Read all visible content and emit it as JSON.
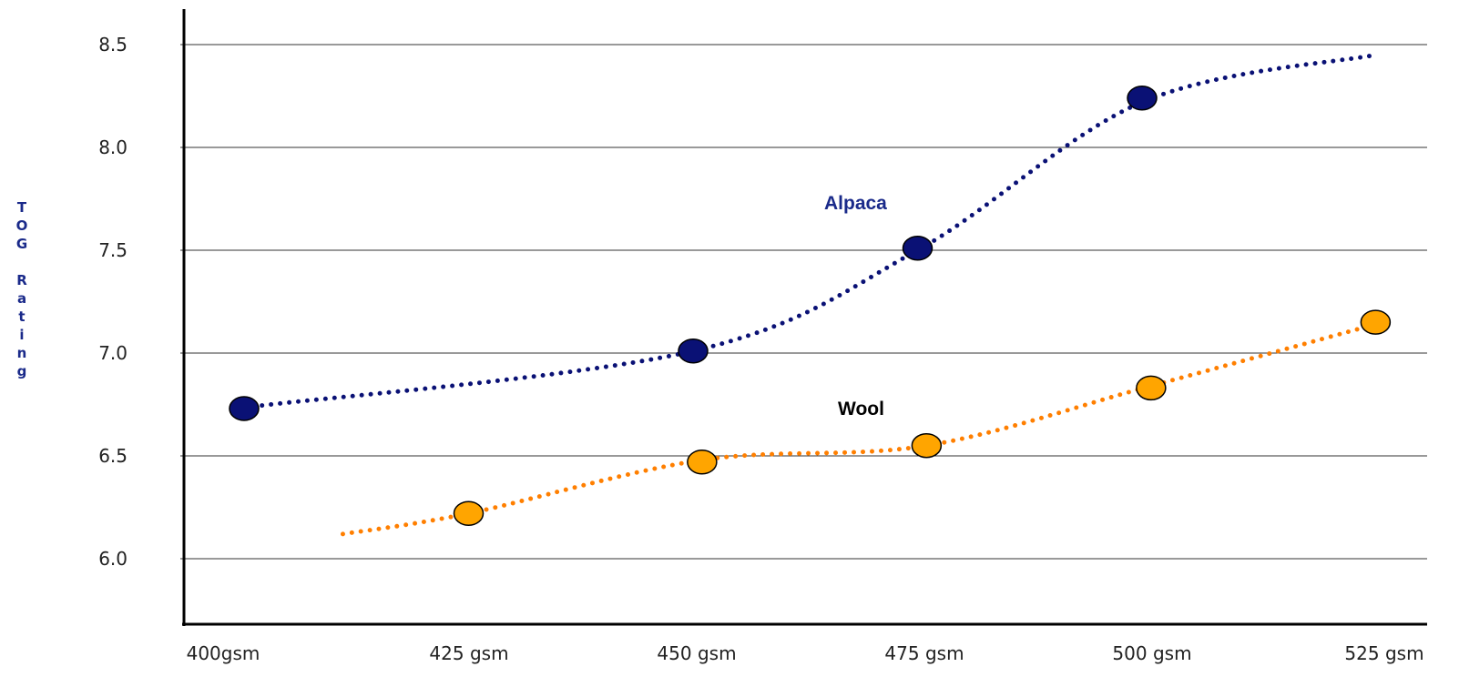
{
  "chart_data": {
    "type": "line",
    "title": "",
    "ylabel": "TOG Rating",
    "xlabel": "",
    "categories": [
      "400gsm",
      "425 gsm",
      "450 gsm",
      "475 gsm",
      "500 gsm",
      "525 gsm"
    ],
    "yticks": [
      "6.0",
      "6.5",
      "7.0",
      "7.5",
      "8.0",
      "8.5"
    ],
    "ylim": [
      5.7,
      8.65
    ],
    "grid": true,
    "series": [
      {
        "name": "Alpaca",
        "color": "#0a1175",
        "line_style": "dotted",
        "points": [
          {
            "x": 400,
            "y": 6.73
          },
          {
            "x": 450,
            "y": 7.01
          },
          {
            "x": 475,
            "y": 7.51
          },
          {
            "x": 500,
            "y": 8.24
          }
        ],
        "trend": [
          {
            "x": 401,
            "y": 6.74
          },
          {
            "x": 450,
            "y": 7.01
          },
          {
            "x": 475,
            "y": 7.5
          },
          {
            "x": 500,
            "y": 8.22
          },
          {
            "x": 526,
            "y": 8.45
          }
        ]
      },
      {
        "name": "Wool",
        "color": "#ffa500",
        "line_color": "#ff7f00",
        "line_style": "dotted",
        "points": [
          {
            "x": 425,
            "y": 6.22
          },
          {
            "x": 451,
            "y": 6.47
          },
          {
            "x": 476,
            "y": 6.55
          },
          {
            "x": 501,
            "y": 6.83
          },
          {
            "x": 526,
            "y": 7.15
          }
        ],
        "trend": [
          {
            "x": 411,
            "y": 6.12
          },
          {
            "x": 425,
            "y": 6.22
          },
          {
            "x": 451,
            "y": 6.48
          },
          {
            "x": 476,
            "y": 6.55
          },
          {
            "x": 501,
            "y": 6.84
          },
          {
            "x": 526,
            "y": 7.14
          }
        ]
      }
    ]
  }
}
